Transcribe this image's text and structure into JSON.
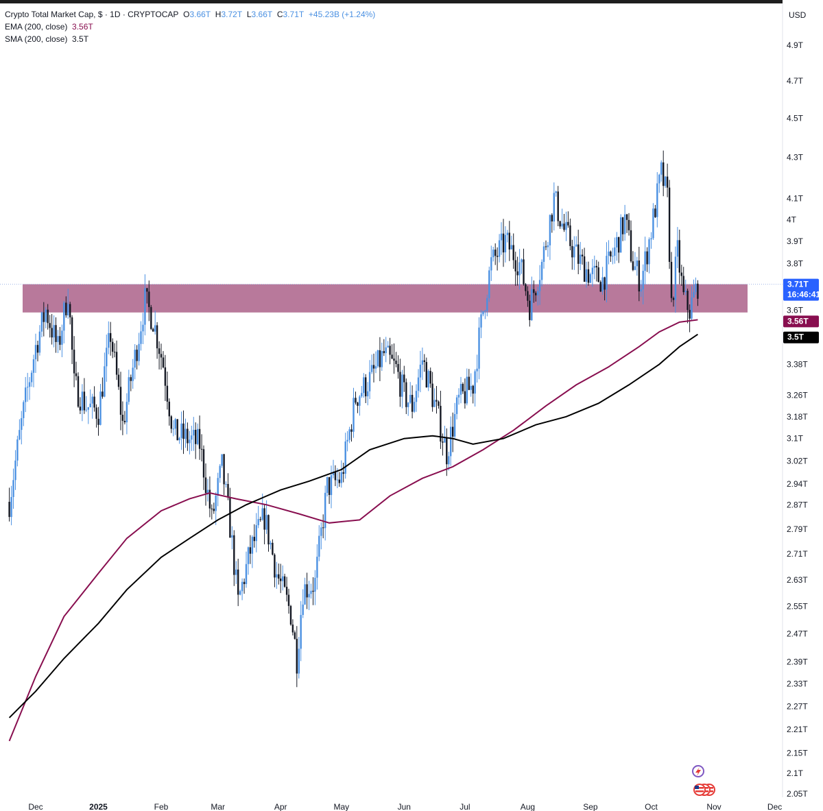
{
  "header": {
    "title": "Crypto Total Market Cap, $ · 1D · CRYPTOCAP",
    "o_label": "O",
    "o_value": "3.66T",
    "h_label": "H",
    "h_value": "3.72T",
    "l_label": "L",
    "l_value": "3.66T",
    "c_label": "C",
    "c_value": "3.71T",
    "change": "+45.23B (+1.24%)",
    "ema_label": "EMA (200, close)",
    "ema_value": "3.56T",
    "sma_label": "SMA (200, close)",
    "sma_value": "3.5T"
  },
  "currency": "USD",
  "tags": {
    "last_price": "3.71T",
    "countdown": "16:46:41",
    "ema": "3.56T",
    "sma": "3.5T"
  },
  "colors": {
    "up": "#4a90e2",
    "down": "#131722",
    "ema": "#880e4f",
    "sma": "#000000",
    "zone": "#b06a90",
    "last_tag": "#2962ff"
  },
  "icons": [
    "lightning-icon",
    "flag-icons"
  ],
  "chart_data": {
    "type": "candlestick",
    "y_scale": "log",
    "y_ticks": [
      "4.9T",
      "4.7T",
      "4.5T",
      "4.3T",
      "4.1T",
      "4T",
      "3.9T",
      "3.8T",
      "3.6T",
      "3.38T",
      "3.26T",
      "3.18T",
      "3.1T",
      "3.02T",
      "2.94T",
      "2.87T",
      "2.79T",
      "2.71T",
      "2.63T",
      "2.55T",
      "2.47T",
      "2.39T",
      "2.33T",
      "2.27T",
      "2.21T",
      "2.15T",
      "2.1T",
      "2.05T"
    ],
    "x_ticks": [
      "Dec",
      "2025",
      "Feb",
      "Mar",
      "Apr",
      "May",
      "Jun",
      "Jul",
      "Aug",
      "Sep",
      "Oct",
      "Nov",
      "Dec"
    ],
    "resistance_zone": [
      3.59,
      3.71
    ],
    "last_close": 3.71,
    "price_path": [
      [
        "2024-11-18",
        2.88
      ],
      [
        "2024-11-25",
        3.2
      ],
      [
        "2024-12-01",
        3.45
      ],
      [
        "2024-12-06",
        3.6
      ],
      [
        "2024-12-12",
        3.44
      ],
      [
        "2024-12-17",
        3.68
      ],
      [
        "2024-12-20",
        3.3
      ],
      [
        "2024-12-26",
        3.22
      ],
      [
        "2025-01-01",
        3.2
      ],
      [
        "2025-01-07",
        3.5
      ],
      [
        "2025-01-13",
        3.15
      ],
      [
        "2025-01-20",
        3.45
      ],
      [
        "2025-01-24",
        3.64
      ],
      [
        "2025-01-28",
        3.56
      ],
      [
        "2025-02-02",
        3.38
      ],
      [
        "2025-02-07",
        3.12
      ],
      [
        "2025-02-14",
        3.1
      ],
      [
        "2025-02-20",
        3.08
      ],
      [
        "2025-02-26",
        2.82
      ],
      [
        "2025-03-03",
        3.0
      ],
      [
        "2025-03-07",
        2.8
      ],
      [
        "2025-03-11",
        2.56
      ],
      [
        "2025-03-17",
        2.72
      ],
      [
        "2025-03-24",
        2.83
      ],
      [
        "2025-03-30",
        2.65
      ],
      [
        "2025-04-06",
        2.53
      ],
      [
        "2025-04-09",
        2.4
      ],
      [
        "2025-04-12",
        2.6
      ],
      [
        "2025-04-18",
        2.62
      ],
      [
        "2025-04-24",
        2.93
      ],
      [
        "2025-05-01",
        2.96
      ],
      [
        "2025-05-08",
        3.25
      ],
      [
        "2025-05-15",
        3.32
      ],
      [
        "2025-05-22",
        3.42
      ],
      [
        "2025-05-28",
        3.36
      ],
      [
        "2025-06-01",
        3.26
      ],
      [
        "2025-06-05",
        3.22
      ],
      [
        "2025-06-10",
        3.4
      ],
      [
        "2025-06-17",
        3.2
      ],
      [
        "2025-06-22",
        3.05
      ],
      [
        "2025-06-28",
        3.24
      ],
      [
        "2025-07-05",
        3.3
      ],
      [
        "2025-07-10",
        3.6
      ],
      [
        "2025-07-14",
        3.8
      ],
      [
        "2025-07-21",
        3.9
      ],
      [
        "2025-07-28",
        3.8
      ],
      [
        "2025-08-02",
        3.62
      ],
      [
        "2025-08-08",
        3.8
      ],
      [
        "2025-08-14",
        4.1
      ],
      [
        "2025-08-19",
        3.95
      ],
      [
        "2025-08-26",
        3.82
      ],
      [
        "2025-09-01",
        3.75
      ],
      [
        "2025-09-07",
        3.73
      ],
      [
        "2025-09-13",
        3.86
      ],
      [
        "2025-09-18",
        4.0
      ],
      [
        "2025-09-22",
        3.8
      ],
      [
        "2025-09-26",
        3.72
      ],
      [
        "2025-10-01",
        3.95
      ],
      [
        "2025-10-06",
        4.22
      ],
      [
        "2025-10-09",
        4.1
      ],
      [
        "2025-10-11",
        3.62
      ],
      [
        "2025-10-14",
        3.85
      ],
      [
        "2025-10-17",
        3.65
      ],
      [
        "2025-10-20",
        3.6
      ],
      [
        "2025-10-24",
        3.71
      ]
    ],
    "ema_200": [
      [
        "2024-11-18",
        2.18
      ],
      [
        "2024-12-01",
        2.35
      ],
      [
        "2024-12-15",
        2.52
      ],
      [
        "2025-01-01",
        2.65
      ],
      [
        "2025-01-15",
        2.76
      ],
      [
        "2025-02-01",
        2.85
      ],
      [
        "2025-02-15",
        2.89
      ],
      [
        "2025-02-25",
        2.91
      ],
      [
        "2025-03-10",
        2.89
      ],
      [
        "2025-03-25",
        2.87
      ],
      [
        "2025-04-10",
        2.84
      ],
      [
        "2025-04-25",
        2.81
      ],
      [
        "2025-05-10",
        2.82
      ],
      [
        "2025-05-25",
        2.9
      ],
      [
        "2025-06-10",
        2.96
      ],
      [
        "2025-06-25",
        3.0
      ],
      [
        "2025-07-10",
        3.06
      ],
      [
        "2025-07-25",
        3.13
      ],
      [
        "2025-08-10",
        3.22
      ],
      [
        "2025-08-25",
        3.3
      ],
      [
        "2025-09-10",
        3.37
      ],
      [
        "2025-09-25",
        3.45
      ],
      [
        "2025-10-05",
        3.51
      ],
      [
        "2025-10-15",
        3.55
      ],
      [
        "2025-10-24",
        3.56
      ]
    ],
    "sma_200": [
      [
        "2024-11-18",
        2.24
      ],
      [
        "2024-12-01",
        2.31
      ],
      [
        "2024-12-15",
        2.4
      ],
      [
        "2025-01-01",
        2.5
      ],
      [
        "2025-01-15",
        2.6
      ],
      [
        "2025-02-01",
        2.7
      ],
      [
        "2025-02-15",
        2.76
      ],
      [
        "2025-03-01",
        2.82
      ],
      [
        "2025-03-15",
        2.87
      ],
      [
        "2025-04-01",
        2.92
      ],
      [
        "2025-04-15",
        2.95
      ],
      [
        "2025-05-01",
        2.99
      ],
      [
        "2025-05-15",
        3.06
      ],
      [
        "2025-06-01",
        3.1
      ],
      [
        "2025-06-15",
        3.11
      ],
      [
        "2025-06-25",
        3.1
      ],
      [
        "2025-07-05",
        3.08
      ],
      [
        "2025-07-20",
        3.1
      ],
      [
        "2025-08-05",
        3.15
      ],
      [
        "2025-08-20",
        3.18
      ],
      [
        "2025-09-05",
        3.23
      ],
      [
        "2025-09-20",
        3.3
      ],
      [
        "2025-10-05",
        3.38
      ],
      [
        "2025-10-15",
        3.45
      ],
      [
        "2025-10-24",
        3.5
      ]
    ]
  }
}
